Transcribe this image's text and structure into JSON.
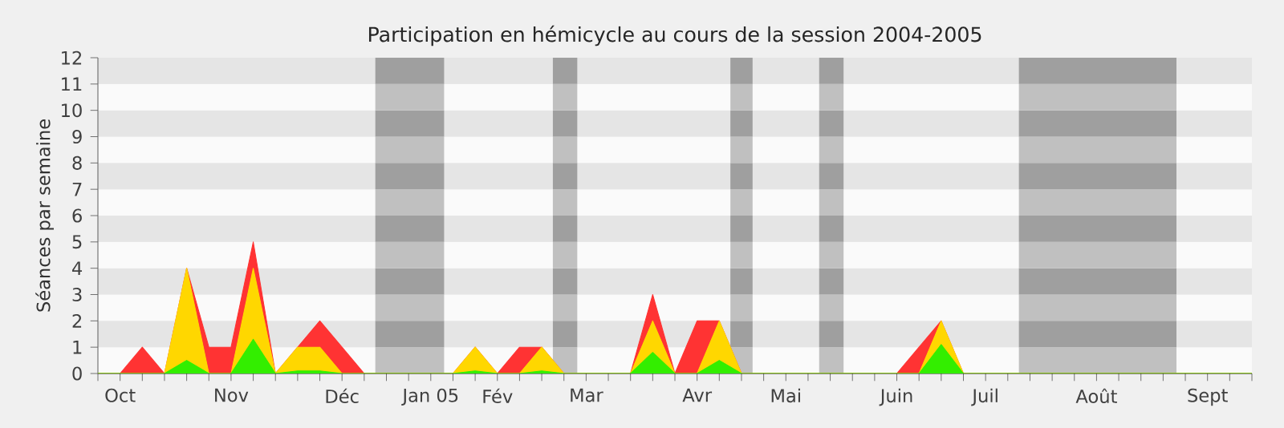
{
  "chart_data": {
    "type": "area",
    "stacked": true,
    "title": "Participation en hémicycle au cours de la session 2004-2005",
    "ylabel": "Séances par semaine",
    "categories": [
      null,
      "Oct",
      null,
      null,
      null,
      null,
      "Nov",
      null,
      null,
      null,
      null,
      "Déc",
      null,
      null,
      null,
      "Jan 05",
      null,
      null,
      "Fév",
      null,
      null,
      null,
      "Mar",
      null,
      null,
      null,
      null,
      "Avr",
      null,
      null,
      null,
      "Mai",
      null,
      null,
      null,
      null,
      "Juin",
      null,
      null,
      null,
      "Juil",
      null,
      null,
      null,
      null,
      "Août",
      null,
      null,
      null,
      null,
      "Sept",
      null,
      null
    ],
    "ylim": [
      0,
      12
    ],
    "yticks": [
      0,
      1,
      2,
      3,
      4,
      5,
      6,
      7,
      8,
      9,
      10,
      11,
      12
    ],
    "series": [
      {
        "color": "#33ee00",
        "values": [
          0,
          0,
          0,
          0,
          0.5,
          0,
          0,
          1.3,
          0,
          0.1,
          0.1,
          0,
          0,
          0,
          0,
          0,
          0,
          0.1,
          0,
          0,
          0.1,
          0,
          0,
          0,
          0,
          0.8,
          0,
          0,
          0.5,
          0,
          0,
          0,
          0,
          0,
          0,
          0,
          0,
          0,
          1.1,
          0,
          0,
          0,
          0,
          0,
          0,
          0,
          0,
          0,
          0,
          0,
          0,
          0,
          0
        ]
      },
      {
        "color": "#ffd700",
        "values": [
          0,
          0,
          0,
          0,
          3.5,
          0,
          0,
          2.7,
          0,
          0.9,
          0.9,
          0,
          0,
          0,
          0,
          0,
          0,
          0.9,
          0,
          0,
          0.9,
          0,
          0,
          0,
          0,
          1.2,
          0,
          0,
          1.5,
          0,
          0,
          0,
          0,
          0,
          0,
          0,
          0,
          0,
          0.9,
          0,
          0,
          0,
          0,
          0,
          0,
          0,
          0,
          0,
          0,
          0,
          0,
          0,
          0
        ]
      },
      {
        "color": "#ff3333",
        "values": [
          0,
          0,
          1,
          0,
          0,
          1,
          1,
          1,
          0,
          0,
          1,
          1,
          0,
          0,
          0,
          0,
          0,
          0,
          0,
          1,
          0,
          0,
          0,
          0,
          0,
          1,
          0,
          2,
          0,
          0,
          0,
          0,
          0,
          0,
          0,
          0,
          0,
          1,
          0,
          0,
          0,
          0,
          0,
          0,
          0,
          0,
          0,
          0,
          0,
          0,
          0,
          0,
          0
        ]
      }
    ]
  }
}
